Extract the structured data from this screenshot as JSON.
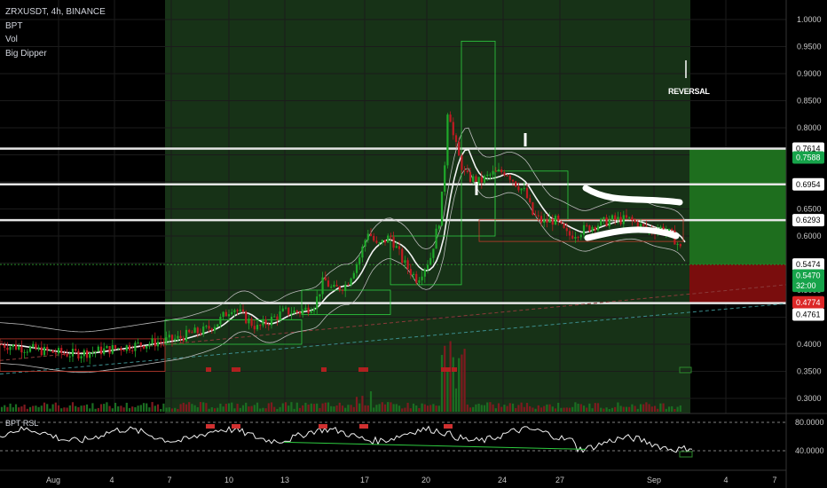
{
  "legend": {
    "symbol_line": "ZRXUSDT, 4h, BINANCE",
    "indicators": [
      "BPT",
      "Vol",
      "Big Dipper"
    ]
  },
  "annotation": {
    "text": "REVERSAL"
  },
  "oscillator": {
    "title": "BPT RSL",
    "levels": [
      "80.0000",
      "40.0000"
    ]
  },
  "colors": {
    "background": "#000000",
    "highlight_zone": "#173217",
    "profit_zone": "#1e6e1e",
    "loss_zone": "#7a0d0d",
    "up_candle": "#1fa82a",
    "down_candle": "#c01a22",
    "price_label_green": "#16a34a",
    "price_label_red": "#dc2626",
    "grid": "#1b1b1b"
  },
  "chart_data": {
    "type": "candlestick",
    "symbol": "ZRXUSDT",
    "timeframe": "4h",
    "exchange": "BINANCE",
    "ylim": [
      0.27,
      1.02
    ],
    "y_ticks": [
      "1.0000",
      "0.9500",
      "0.9000",
      "0.8500",
      "0.8000",
      "0.7500",
      "0.7000",
      "0.6500",
      "0.6000",
      "0.5500",
      "0.5000",
      "0.4500",
      "0.4000",
      "0.3500",
      "0.3000"
    ],
    "x_ticks": [
      "Aug",
      "4",
      "7",
      "10",
      "13",
      "17",
      "20",
      "24",
      "27",
      "Sep",
      "4",
      "7"
    ],
    "price_labels": [
      {
        "value": "0.7614",
        "style": "white"
      },
      {
        "value": "0.7588",
        "style": "green"
      },
      {
        "value": "0.6954",
        "style": "white"
      },
      {
        "value": "0.6293",
        "style": "white"
      },
      {
        "value": "0.5474",
        "style": "white"
      },
      {
        "value": "0.5470",
        "style": "green"
      },
      {
        "value": "32:00",
        "style": "green"
      },
      {
        "value": "0.4774",
        "style": "red"
      },
      {
        "value": "0.4761",
        "style": "white"
      }
    ],
    "horizontal_levels": [
      0.7614,
      0.6954,
      0.6293,
      0.4761
    ],
    "position": {
      "entry": 0.5474,
      "target": 0.7614,
      "stop": 0.4761
    },
    "price_path": [
      [
        0,
        0.4
      ],
      [
        20,
        0.395
      ],
      [
        40,
        0.39
      ],
      [
        60,
        0.385
      ],
      [
        80,
        0.382
      ],
      [
        100,
        0.385
      ],
      [
        120,
        0.39
      ],
      [
        140,
        0.395
      ],
      [
        160,
        0.4
      ],
      [
        180,
        0.405
      ],
      [
        200,
        0.41
      ],
      [
        215,
        0.42
      ],
      [
        230,
        0.425
      ],
      [
        245,
        0.44
      ],
      [
        262,
        0.47
      ],
      [
        275,
        0.45
      ],
      [
        290,
        0.43
      ],
      [
        305,
        0.445
      ],
      [
        320,
        0.46
      ],
      [
        340,
        0.46
      ],
      [
        355,
        0.475
      ],
      [
        365,
        0.52
      ],
      [
        375,
        0.5
      ],
      [
        390,
        0.51
      ],
      [
        405,
        0.56
      ],
      [
        415,
        0.61
      ],
      [
        425,
        0.58
      ],
      [
        440,
        0.6
      ],
      [
        455,
        0.55
      ],
      [
        470,
        0.52
      ],
      [
        485,
        0.56
      ],
      [
        495,
        0.63
      ],
      [
        500,
        0.7
      ],
      [
        505,
        0.85
      ],
      [
        510,
        0.79
      ],
      [
        518,
        0.74
      ],
      [
        525,
        0.71
      ],
      [
        540,
        0.7
      ],
      [
        555,
        0.715
      ],
      [
        570,
        0.72
      ],
      [
        580,
        0.7
      ],
      [
        592,
        0.68
      ],
      [
        600,
        0.64
      ],
      [
        612,
        0.625
      ],
      [
        625,
        0.63
      ],
      [
        640,
        0.6
      ],
      [
        655,
        0.61
      ],
      [
        670,
        0.62
      ],
      [
        690,
        0.63
      ],
      [
        710,
        0.63
      ],
      [
        730,
        0.61
      ],
      [
        745,
        0.615
      ],
      [
        758,
        0.6
      ],
      [
        766,
        0.58
      ],
      [
        772,
        0.55
      ]
    ],
    "oscillator_levels": [
      80,
      40
    ]
  }
}
